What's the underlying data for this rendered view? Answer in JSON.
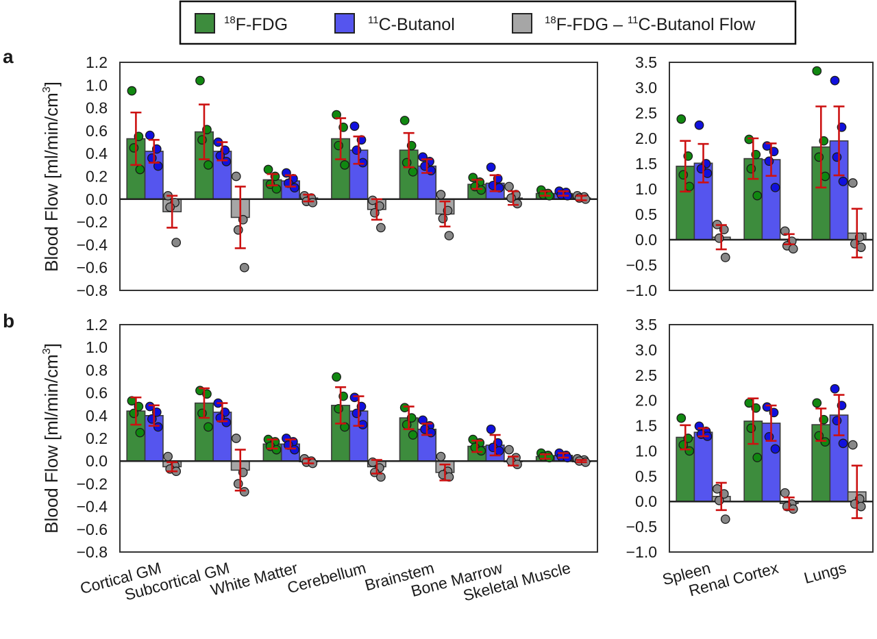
{
  "legend": {
    "items": [
      {
        "label_sup": "18",
        "label_main": "F-FDG",
        "label_suffix": "",
        "color": "#3d8c3d"
      },
      {
        "label_sup": "11",
        "label_main": "C-Butanol",
        "label_suffix": "",
        "color": "#5555ee"
      },
      {
        "label_sup": "18",
        "label_main": "F-FDG – ",
        "label_sup2": "11",
        "label_suffix": "C-Butanol Flow",
        "color": "#a6a6a6"
      }
    ]
  },
  "panels": [
    {
      "letter": "a"
    },
    {
      "letter": "b"
    }
  ],
  "ylabel": {
    "main": "Blood Flow [ml/min/cm",
    "sup": "3",
    "close": "]"
  },
  "chart_data": [
    {
      "type": "bar",
      "panel": "a-left",
      "categories": [
        "Cortical GM",
        "Subcortical GM",
        "White Matter",
        "Cerebellum",
        "Brainstem",
        "Bone Marrow",
        "Skeletal Muscle"
      ],
      "ylim": [
        -0.8,
        1.2
      ],
      "yticks": [
        "1.2",
        "1.0",
        "0.8",
        "0.6",
        "0.4",
        "0.2",
        "0.0",
        "−0.2",
        "−0.4",
        "−0.6",
        "−0.8"
      ],
      "series": [
        {
          "name": "18F-FDG",
          "values": [
            0.53,
            0.59,
            0.17,
            0.53,
            0.43,
            0.13,
            0.05
          ],
          "errors": [
            0.23,
            0.24,
            0.05,
            0.18,
            0.15,
            0.04,
            0.02
          ],
          "points": [
            [
              0.95,
              0.55,
              0.45,
              0.26
            ],
            [
              1.04,
              0.61,
              0.52,
              0.3
            ],
            [
              0.26,
              0.2,
              0.13,
              0.09
            ],
            [
              0.74,
              0.63,
              0.47,
              0.3
            ],
            [
              0.69,
              0.47,
              0.32,
              0.24
            ],
            [
              0.19,
              0.15,
              0.11,
              0.08
            ],
            [
              0.08,
              0.05,
              0.04,
              0.03
            ]
          ]
        },
        {
          "name": "11C-Butanol",
          "values": [
            0.42,
            0.42,
            0.16,
            0.43,
            0.29,
            0.14,
            0.05
          ],
          "errors": [
            0.1,
            0.08,
            0.05,
            0.12,
            0.06,
            0.07,
            0.02
          ],
          "points": [
            [
              0.56,
              0.44,
              0.36,
              0.29
            ],
            [
              0.5,
              0.43,
              0.38,
              0.33
            ],
            [
              0.23,
              0.18,
              0.14,
              0.1
            ],
            [
              0.64,
              0.52,
              0.43,
              0.32
            ],
            [
              0.37,
              0.33,
              0.29,
              0.25
            ],
            [
              0.28,
              0.18,
              0.12,
              0.1
            ],
            [
              0.07,
              0.06,
              0.04,
              0.03
            ]
          ]
        },
        {
          "name": "18F-FDG – 11C-Butanol Flow",
          "values": [
            -0.11,
            -0.16,
            0.01,
            -0.09,
            -0.13,
            0.01,
            0.01
          ],
          "errors": [
            0.14,
            0.27,
            0.03,
            0.09,
            0.11,
            0.06,
            0.02
          ],
          "points": [
            [
              0.03,
              -0.03,
              -0.07,
              -0.38
            ],
            [
              0.2,
              -0.18,
              -0.27,
              -0.6
            ],
            [
              0.03,
              0.01,
              -0.02,
              -0.03
            ],
            [
              -0.01,
              -0.06,
              -0.12,
              -0.25
            ],
            [
              0.04,
              -0.1,
              -0.17,
              -0.32
            ],
            [
              0.11,
              0.04,
              0.01,
              -0.04
            ],
            [
              0.03,
              0.02,
              0.01,
              0.0
            ]
          ]
        }
      ]
    },
    {
      "type": "bar",
      "panel": "a-right",
      "categories": [
        "Spleen",
        "Renal Cortex",
        "Lungs"
      ],
      "ylim": [
        -1.0,
        3.5
      ],
      "yticks": [
        "3.5",
        "3.0",
        "2.5",
        "2.0",
        "1.5",
        "1.0",
        "0.5",
        "0.0",
        "−0.5",
        "−1.0"
      ],
      "series": [
        {
          "name": "18F-FDG",
          "values": [
            1.45,
            1.6,
            1.83
          ],
          "errors": [
            0.5,
            0.4,
            0.8
          ],
          "points": [
            [
              2.38,
              1.65,
              1.28,
              1.05
            ],
            [
              1.98,
              1.68,
              1.4,
              0.87
            ],
            [
              3.33,
              1.95,
              1.63,
              1.25
            ]
          ]
        },
        {
          "name": "11C-Butanol",
          "values": [
            1.51,
            1.58,
            1.95
          ],
          "errors": [
            0.38,
            0.32,
            0.68
          ],
          "points": [
            [
              2.26,
              1.5,
              1.4,
              1.31
            ],
            [
              1.85,
              1.74,
              1.55,
              1.03
            ],
            [
              3.14,
              2.22,
              1.63,
              1.15
            ]
          ]
        },
        {
          "name": "18F-FDG – 11C-Butanol Flow",
          "values": [
            0.05,
            0.01,
            0.13
          ],
          "errors": [
            0.24,
            0.1,
            0.48
          ],
          "points": [
            [
              0.3,
              0.2,
              0.03,
              -0.35
            ],
            [
              0.17,
              -0.03,
              -0.12,
              -0.18
            ],
            [
              1.12,
              0.05,
              -0.08,
              -0.15
            ]
          ]
        }
      ]
    },
    {
      "type": "bar",
      "panel": "b-left",
      "categories": [
        "Cortical GM",
        "Subcortical GM",
        "White Matter",
        "Cerebellum",
        "Brainstem",
        "Bone Marrow",
        "Skeletal Muscle"
      ],
      "ylim": [
        -0.8,
        1.2
      ],
      "yticks": [
        "1.2",
        "1.0",
        "0.8",
        "0.6",
        "0.4",
        "0.2",
        "0.0",
        "−0.2",
        "−0.4",
        "−0.6",
        "−0.8"
      ],
      "series": [
        {
          "name": "18F-FDG",
          "values": [
            0.44,
            0.51,
            0.15,
            0.49,
            0.38,
            0.13,
            0.04
          ],
          "errors": [
            0.12,
            0.13,
            0.04,
            0.16,
            0.1,
            0.05,
            0.02
          ],
          "points": [
            [
              0.53,
              0.48,
              0.42,
              0.25
            ],
            [
              0.62,
              0.59,
              0.42,
              0.3
            ],
            [
              0.19,
              0.17,
              0.13,
              0.1
            ],
            [
              0.74,
              0.57,
              0.46,
              0.3
            ],
            [
              0.47,
              0.38,
              0.32,
              0.23
            ],
            [
              0.19,
              0.16,
              0.12,
              0.09
            ],
            [
              0.07,
              0.05,
              0.04,
              0.03
            ]
          ]
        },
        {
          "name": "11C-Butanol",
          "values": [
            0.4,
            0.43,
            0.15,
            0.44,
            0.28,
            0.14,
            0.05
          ],
          "errors": [
            0.09,
            0.08,
            0.04,
            0.13,
            0.05,
            0.09,
            0.02
          ],
          "points": [
            [
              0.48,
              0.43,
              0.37,
              0.3
            ],
            [
              0.51,
              0.43,
              0.38,
              0.34
            ],
            [
              0.2,
              0.17,
              0.14,
              0.1
            ],
            [
              0.56,
              0.48,
              0.42,
              0.32
            ],
            [
              0.36,
              0.31,
              0.28,
              0.25
            ],
            [
              0.28,
              0.16,
              0.12,
              0.09
            ],
            [
              0.07,
              0.05,
              0.04,
              0.03
            ]
          ]
        },
        {
          "name": "18F-FDG – 11C-Butanol Flow",
          "values": [
            -0.05,
            -0.08,
            0.0,
            -0.05,
            -0.1,
            0.0,
            0.0
          ],
          "errors": [
            0.04,
            0.18,
            0.02,
            0.06,
            0.07,
            0.04,
            0.01
          ],
          "points": [
            [
              0.04,
              -0.04,
              -0.07,
              -0.09
            ],
            [
              0.2,
              -0.1,
              -0.2,
              -0.27
            ],
            [
              0.02,
              0.0,
              -0.01,
              -0.02
            ],
            [
              -0.01,
              -0.06,
              -0.1,
              -0.14
            ],
            [
              0.04,
              -0.09,
              -0.12,
              -0.14
            ],
            [
              0.1,
              0.03,
              0.0,
              -0.03
            ],
            [
              0.02,
              0.01,
              0.0,
              -0.01
            ]
          ]
        }
      ]
    },
    {
      "type": "bar",
      "panel": "b-right",
      "categories": [
        "Spleen",
        "Renal Cortex",
        "Lungs"
      ],
      "ylim": [
        -1.0,
        3.5
      ],
      "yticks": [
        "3.5",
        "3.0",
        "2.5",
        "2.0",
        "1.5",
        "1.0",
        "0.5",
        "0.0",
        "−0.5",
        "−1.0"
      ],
      "series": [
        {
          "name": "18F-FDG",
          "values": [
            1.27,
            1.59,
            1.52
          ],
          "errors": [
            0.24,
            0.45,
            0.32
          ],
          "points": [
            [
              1.65,
              1.25,
              1.12,
              1.0
            ],
            [
              1.95,
              1.85,
              1.45,
              0.87
            ],
            [
              1.95,
              1.62,
              1.3,
              1.18
            ]
          ]
        },
        {
          "name": "11C-Butanol",
          "values": [
            1.37,
            1.55,
            1.71
          ],
          "errors": [
            0.08,
            0.35,
            0.4
          ],
          "points": [
            [
              1.49,
              1.39,
              1.33,
              1.29
            ],
            [
              1.87,
              1.76,
              1.28,
              1.04
            ],
            [
              2.23,
              1.9,
              1.6,
              1.15
            ]
          ]
        },
        {
          "name": "18F-FDG – 11C-Butanol Flow",
          "values": [
            0.1,
            -0.04,
            0.19
          ],
          "errors": [
            0.27,
            0.12,
            0.52
          ],
          "points": [
            [
              0.25,
              0.15,
              0.02,
              -0.35
            ],
            [
              0.17,
              -0.05,
              -0.1,
              -0.15
            ],
            [
              1.12,
              0.05,
              -0.05,
              -0.1
            ]
          ]
        }
      ]
    }
  ]
}
